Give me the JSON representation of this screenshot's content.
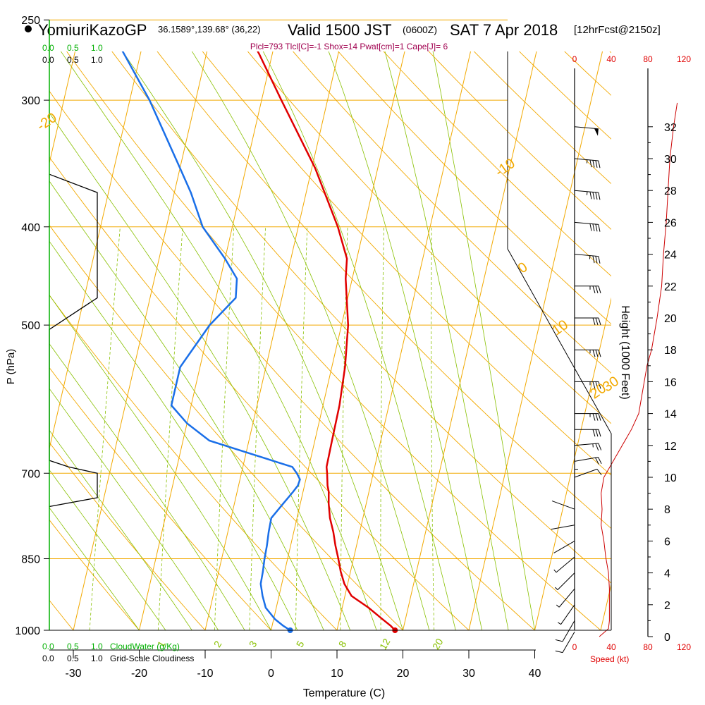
{
  "header": {
    "station": "YomiuriKazoGP",
    "coords": "36.1589°,139.68° (36,22)",
    "valid_label": "Valid 1500 JST",
    "zulu": "(0600Z)",
    "date": "SAT 7 Apr 2018",
    "forecast": "[12hrFcst@2150z]"
  },
  "indices": "Plcl=793 Tlcl[C]=-1 Shox=14 Pwat[cm]=1 Cape[J]= 6",
  "colors": {
    "temp": "#e00000",
    "dew": "#1a6fe8",
    "isotherm": "#f2a900",
    "mixing": "#88c000",
    "wind_speed": "#cc0000",
    "cloud_water": "#00b000",
    "indices": "#a0004f"
  },
  "left_scales": {
    "cloud_water_ticks": [
      "0.0",
      "0.5",
      "1.0"
    ],
    "cloudiness_ticks": [
      "0.0",
      "0.5",
      "1.0"
    ],
    "cloud_water_label": "CloudWater (g/Kg)",
    "cloudiness_label": "Grid-Scale Cloudiness"
  },
  "right_scales": {
    "speed_ticks": [
      "0",
      "40",
      "80",
      "120"
    ],
    "speed_label": "Speed (kt)",
    "height_ticks": [
      "0",
      "2",
      "4",
      "6",
      "8",
      "10",
      "12",
      "14",
      "16",
      "18",
      "20",
      "22",
      "24",
      "26",
      "28",
      "30",
      "32"
    ],
    "height_label": "Height (1000 Feet)"
  },
  "chart_data": {
    "type": "line",
    "xlabel": "Temperature (C)",
    "ylabel": "P (hPa)",
    "x_ticks": [
      -30,
      -20,
      -10,
      0,
      10,
      20,
      30,
      40
    ],
    "pressure_ticks": [
      250,
      300,
      400,
      500,
      700,
      850,
      1000
    ],
    "xlim": [
      -34,
      36
    ],
    "plim": [
      250,
      1000
    ],
    "log_pressure": true,
    "skew_per_decade": 35.5,
    "temperature": {
      "p": [
        1000,
        990,
        975,
        950,
        925,
        900,
        875,
        850,
        825,
        800,
        775,
        750,
        730,
        720,
        700,
        690,
        650,
        600,
        550,
        500,
        450,
        430,
        400,
        350,
        300,
        270,
        260
      ],
      "t": [
        18.8,
        18.0,
        16.5,
        14.0,
        11.0,
        9.5,
        8.5,
        7.7,
        6.8,
        6.0,
        5.0,
        4.3,
        3.9,
        3.5,
        3.0,
        2.7,
        2.6,
        2.5,
        2.0,
        1.0,
        -1.0,
        -1.5,
        -4.0,
        -9.5,
        -17.0,
        -22.0,
        -24.0
      ]
    },
    "dewpoint": {
      "p": [
        1000,
        990,
        975,
        950,
        925,
        900,
        875,
        850,
        825,
        800,
        775,
        750,
        730,
        720,
        710,
        700,
        690,
        650,
        625,
        600,
        550,
        500,
        470,
        450,
        430,
        400,
        370,
        350,
        300,
        270,
        260
      ],
      "t": [
        2.9,
        1.7,
        0.2,
        -1.6,
        -2.5,
        -3.2,
        -3.3,
        -3.5,
        -3.6,
        -3.8,
        -3.9,
        -2.6,
        -1.5,
        -1.0,
        -0.9,
        -1.6,
        -2.5,
        -16.0,
        -20.0,
        -23.0,
        -23.0,
        -20.0,
        -17.0,
        -17.5,
        -20.0,
        -24.5,
        -27.5,
        -30.0,
        -37.0,
        -42.5,
        -44.5
      ]
    },
    "parcel_start": {
      "p": 1000,
      "t": 18.8,
      "td": 2.9
    },
    "isotherm_labels": [
      -20,
      -10,
      0,
      10,
      20,
      30
    ],
    "mixing_ratio_labels": [
      1,
      2,
      3,
      5,
      8,
      12,
      20
    ],
    "wind_profile": [
      {
        "h": 0.3,
        "dir": 30,
        "spd": 10
      },
      {
        "h": 1.0,
        "dir": 30,
        "spd": 10
      },
      {
        "h": 2.0,
        "dir": 35,
        "spd": 9
      },
      {
        "h": 3.0,
        "dir": 40,
        "spd": 8
      },
      {
        "h": 4.0,
        "dir": 45,
        "spd": 6
      },
      {
        "h": 5.0,
        "dir": 50,
        "spd": 5
      },
      {
        "h": 6.0,
        "dir": 60,
        "spd": 4
      },
      {
        "h": 7.0,
        "dir": 80,
        "spd": 3
      },
      {
        "h": 8.0,
        "dir": 110,
        "spd": 3
      },
      {
        "h": 9.0,
        "dir": 180,
        "spd": 6
      },
      {
        "h": 10.0,
        "dir": 250,
        "spd": 14
      },
      {
        "h": 11.0,
        "dir": 260,
        "spd": 20
      },
      {
        "h": 12.0,
        "dir": 265,
        "spd": 25
      },
      {
        "h": 13.0,
        "dir": 270,
        "spd": 30
      },
      {
        "h": 14.0,
        "dir": 270,
        "spd": 35
      },
      {
        "h": 16.0,
        "dir": 270,
        "spd": 35
      },
      {
        "h": 18.0,
        "dir": 270,
        "spd": 35
      },
      {
        "h": 20.0,
        "dir": 270,
        "spd": 30
      },
      {
        "h": 22.0,
        "dir": 270,
        "spd": 35
      },
      {
        "h": 24.0,
        "dir": 275,
        "spd": 35
      },
      {
        "h": 26.0,
        "dir": 275,
        "spd": 40
      },
      {
        "h": 28.0,
        "dir": 275,
        "spd": 45
      },
      {
        "h": 30.0,
        "dir": 275,
        "spd": 45
      },
      {
        "h": 32.0,
        "dir": 275,
        "spd": 50
      }
    ],
    "wind_speed_profile": {
      "h": [
        0,
        0.5,
        1,
        2,
        3,
        4,
        5,
        6,
        7,
        8,
        9,
        10,
        11,
        12,
        13,
        14,
        15,
        16,
        17,
        18,
        20,
        22,
        24,
        26,
        28,
        30,
        32,
        33.5
      ],
      "spd": [
        27,
        37,
        38,
        38,
        38,
        37,
        34,
        32,
        29,
        30,
        29,
        32,
        42,
        52,
        62,
        70,
        73,
        76,
        79,
        84,
        90,
        95,
        97,
        100,
        102,
        104,
        108,
        112
      ]
    },
    "cloudiness_profile": {
      "p": [
        355,
        370,
        400,
        450,
        470,
        505,
        680,
        690,
        700,
        740,
        755
      ],
      "v": [
        0,
        1.0,
        1.0,
        1.0,
        1.0,
        0,
        0,
        0.4,
        1.0,
        1.0,
        0
      ]
    }
  }
}
